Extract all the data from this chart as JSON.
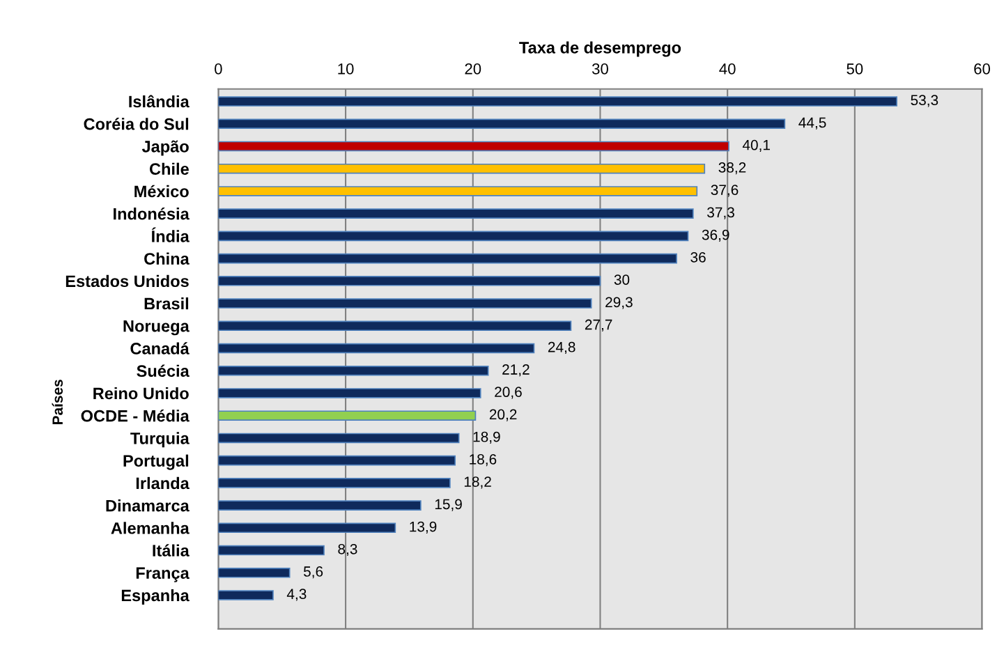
{
  "chart_data": {
    "type": "bar",
    "orientation": "horizontal",
    "xlabel": "Taxa de desemprego",
    "ylabel": "Países",
    "categories": [
      "Islândia",
      "Coréia do Sul",
      "Japão",
      "Chile",
      "México",
      "Indonésia",
      "Índia",
      "China",
      "Estados Unidos",
      "Brasil",
      "Noruega",
      "Canadá",
      "Suécia",
      "Reino Unido",
      "OCDE - Média",
      "Turquia",
      "Portugal",
      "Irlanda",
      "Dinamarca",
      "Alemanha",
      "Itália",
      "França",
      "Espanha"
    ],
    "values": [
      53.3,
      44.5,
      40.1,
      38.2,
      37.6,
      37.3,
      36.9,
      36,
      30,
      29.3,
      27.7,
      24.8,
      21.2,
      20.6,
      20.2,
      18.9,
      18.6,
      18.2,
      15.9,
      13.9,
      8.3,
      5.6,
      4.3
    ],
    "value_labels": [
      "53,3",
      "44,5",
      "40,1",
      "38,2",
      "37,6",
      "37,3",
      "36,9",
      "36",
      "30",
      "29,3",
      "27,7",
      "24,8",
      "21,2",
      "20,6",
      "20,2",
      "18,9",
      "18,6",
      "18,2",
      "15,9",
      "13,9",
      "8,3",
      "5,6",
      "4,3"
    ],
    "colors": [
      "#0f2a5c",
      "#0f2a5c",
      "#c00000",
      "#ffc000",
      "#ffc000",
      "#0f2a5c",
      "#0f2a5c",
      "#0f2a5c",
      "#0f2a5c",
      "#0f2a5c",
      "#0f2a5c",
      "#0f2a5c",
      "#0f2a5c",
      "#0f2a5c",
      "#92d050",
      "#0f2a5c",
      "#0f2a5c",
      "#0f2a5c",
      "#0f2a5c",
      "#0f2a5c",
      "#0f2a5c",
      "#0f2a5c",
      "#0f2a5c"
    ],
    "xlim": [
      0,
      60
    ],
    "xticks": [
      0,
      10,
      20,
      30,
      40,
      50,
      60
    ],
    "grid": "x"
  }
}
